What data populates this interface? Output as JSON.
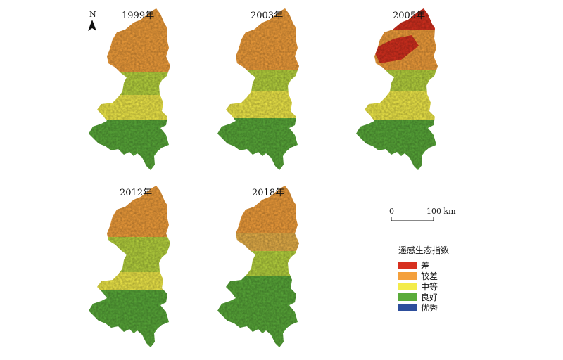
{
  "maps": [
    {
      "year": "1999年",
      "scheme": "y1999"
    },
    {
      "year": "2003年",
      "scheme": "y2003"
    },
    {
      "year": "2005年",
      "scheme": "y2005"
    },
    {
      "year": "2012年",
      "scheme": "y2012"
    },
    {
      "year": "2018年",
      "scheme": "y2018"
    }
  ],
  "north": {
    "label": "N"
  },
  "scale_bar": {
    "start": "0",
    "end": "100 km"
  },
  "legend": {
    "title": "遥感生态指数",
    "items": [
      {
        "label": "差",
        "color": "#d7301f"
      },
      {
        "label": "较差",
        "color": "#f4a03c"
      },
      {
        "label": "中等",
        "color": "#f3ec4a"
      },
      {
        "label": "良好",
        "color": "#5aab3a"
      },
      {
        "label": "优秀",
        "color": "#2d4e9c"
      }
    ]
  }
}
